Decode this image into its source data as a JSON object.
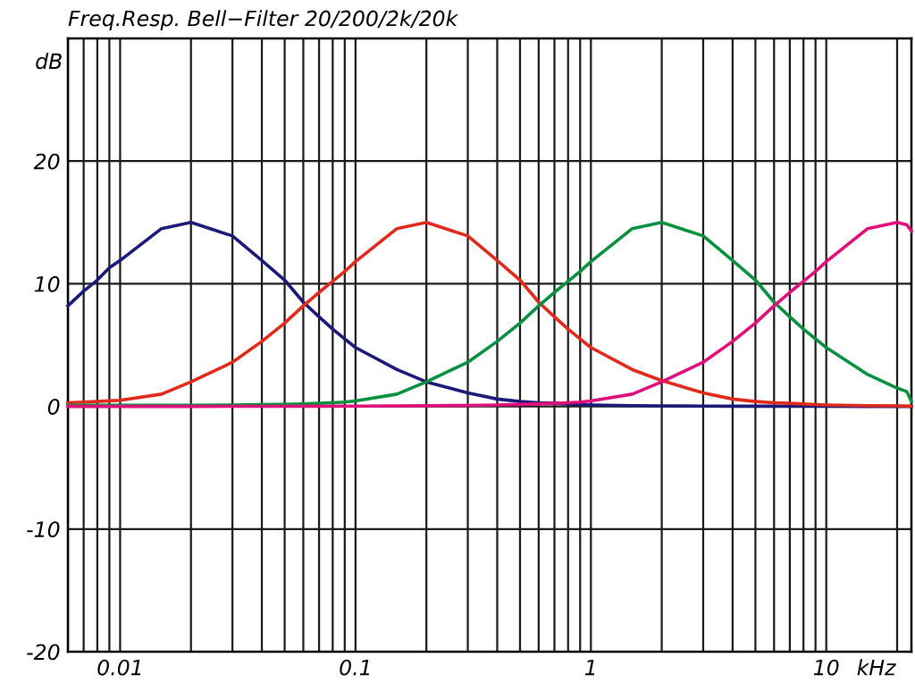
{
  "chart_data": {
    "type": "line",
    "title": "Freq.Resp. Bell−Filter 20/200/2k/20k",
    "xlabel": "kHz",
    "ylabel": "dB",
    "log": "x",
    "grid": true,
    "line_style": "solid",
    "xlim": [
      0.006,
      23
    ],
    "ylim": [
      -20,
      30
    ],
    "xticks": [
      {
        "value": 0.006,
        "label": null
      },
      {
        "value": 0.007,
        "label": null
      },
      {
        "value": 0.008,
        "label": null
      },
      {
        "value": 0.009,
        "label": null
      },
      0.01,
      {
        "value": 0.02,
        "label": null
      },
      {
        "value": 0.03,
        "label": null
      },
      {
        "value": 0.04,
        "label": null
      },
      {
        "value": 0.05,
        "label": null
      },
      {
        "value": 0.06,
        "label": null
      },
      {
        "value": 0.07,
        "label": null
      },
      {
        "value": 0.08,
        "label": null
      },
      {
        "value": 0.09,
        "label": null
      },
      0.1,
      {
        "value": 0.2,
        "label": null
      },
      {
        "value": 0.3,
        "label": null
      },
      {
        "value": 0.4,
        "label": null
      },
      {
        "value": 0.5,
        "label": null
      },
      {
        "value": 0.6,
        "label": null
      },
      {
        "value": 0.7,
        "label": null
      },
      {
        "value": 0.8,
        "label": null
      },
      {
        "value": 0.9,
        "label": null
      },
      1,
      {
        "value": 2,
        "label": null
      },
      {
        "value": 3,
        "label": null
      },
      {
        "value": 4,
        "label": null
      },
      {
        "value": 5,
        "label": null
      },
      {
        "value": 6,
        "label": null
      },
      {
        "value": 7,
        "label": null
      },
      {
        "value": 8,
        "label": null
      },
      {
        "value": 9,
        "label": null
      },
      10,
      {
        "value": 20,
        "label": null
      }
    ],
    "yticks": [
      -20,
      -10,
      0,
      10,
      20
    ],
    "x": [
      0.006,
      0.007,
      0.008,
      0.009,
      0.01,
      0.015,
      0.02,
      0.03,
      0.04,
      0.05,
      0.06,
      0.07,
      0.08,
      0.09,
      0.1,
      0.15,
      0.2,
      0.3,
      0.4,
      0.5,
      0.6,
      0.7,
      0.8,
      0.9,
      1,
      1.5,
      2,
      3,
      4,
      5,
      6,
      7,
      8,
      9,
      10,
      15,
      20,
      22,
      23
    ],
    "series": [
      {
        "color": "#1c1a78",
        "values": [
          8.2,
          9.4,
          10.3,
          11.3,
          11.9,
          14.5,
          15,
          13.9,
          11.9,
          10.3,
          8.5,
          7.3,
          6.3,
          5.5,
          4.8,
          3.0,
          2.0,
          1.1,
          0.6,
          0.4,
          0.3,
          0.25,
          0.2,
          0.15,
          0.12,
          0.06,
          0.04,
          0.03,
          0.02,
          0.02,
          0.02,
          0.01,
          0.01,
          0.01,
          0.01,
          0,
          0,
          0,
          0
        ]
      },
      {
        "color": "#e02a1c",
        "values": [
          0.3,
          0.35,
          0.4,
          0.45,
          0.5,
          1.0,
          2.0,
          3.6,
          5.3,
          6.8,
          8.2,
          9.3,
          10.2,
          11.0,
          11.8,
          14.5,
          15,
          13.9,
          11.9,
          10.3,
          8.5,
          7.3,
          6.3,
          5.5,
          4.8,
          3.0,
          2.1,
          1.1,
          0.6,
          0.4,
          0.3,
          0.25,
          0.2,
          0.15,
          0.12,
          0.06,
          0.04,
          0.03,
          0.02
        ]
      },
      {
        "color": "#089040",
        "values": [
          0.1,
          0.1,
          0.1,
          0.1,
          0.1,
          0.1,
          0.1,
          0.12,
          0.14,
          0.16,
          0.2,
          0.25,
          0.3,
          0.35,
          0.45,
          1.0,
          2.0,
          3.6,
          5.3,
          6.8,
          8.2,
          9.3,
          10.2,
          11.0,
          11.8,
          14.5,
          15,
          13.9,
          11.9,
          10.3,
          8.5,
          7.3,
          6.3,
          5.5,
          4.8,
          2.6,
          1.5,
          1.2,
          0.4
        ]
      },
      {
        "color": "#e0107a",
        "values": [
          0,
          0,
          0,
          0,
          0,
          0,
          0,
          0.01,
          0.01,
          0.01,
          0.02,
          0.02,
          0.02,
          0.03,
          0.03,
          0.04,
          0.05,
          0.08,
          0.12,
          0.16,
          0.2,
          0.25,
          0.3,
          0.35,
          0.45,
          1.0,
          2.0,
          3.6,
          5.3,
          6.8,
          8.2,
          9.3,
          10.2,
          11.0,
          11.8,
          14.5,
          15,
          14.8,
          14.3
        ]
      }
    ]
  }
}
